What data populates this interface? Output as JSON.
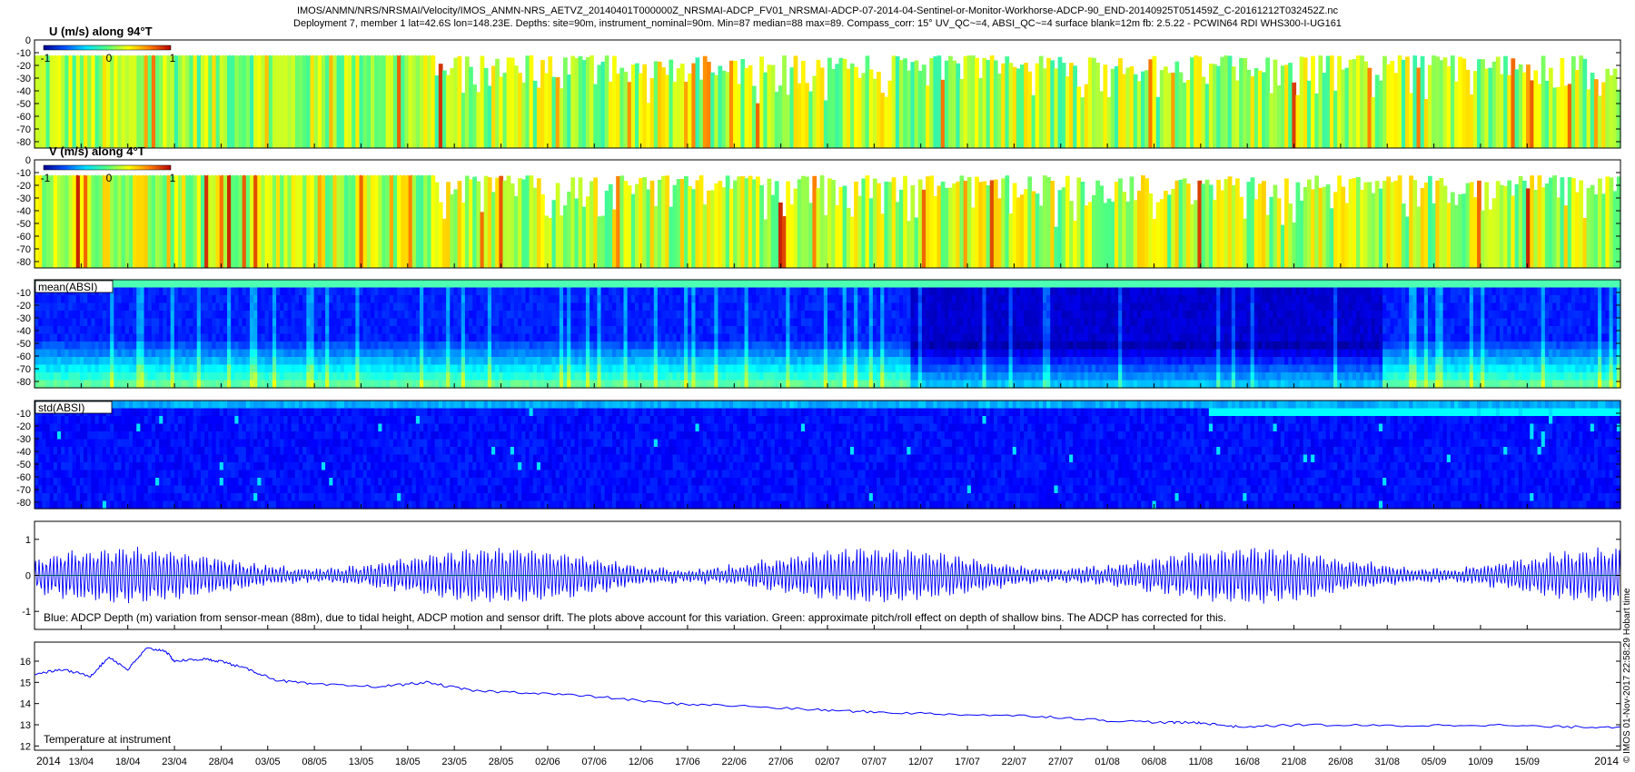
{
  "header": {
    "title_line1": "IMOS/ANMN/NRS/NRSMAI/Velocity/IMOS_ANMN-NRS_AETVZ_20140401T000000Z_NRSMAI-ADCP_FV01_NRSMAI-ADCP-07-2014-04-Sentinel-or-Monitor-Workhorse-ADCP-90_END-20140925T051459Z_C-20161212T032452Z.nc",
    "title_line2": "Deployment 7, member 1 lat=42.6S lon=148.23E. Depths: site=90m, instrument_nominal=90m. Min=87 median=88 max=89. Compass_corr: 15° UV_QC~=4, ABSI_QC~=4 surface blank=12m fb: 2.5.22 - PCWIN64 RDI WHS300-I-UG161"
  },
  "side_note": "© IMOS 01-Nov-2017 22:58:29 Hobart time",
  "colors": {
    "frame": "#000000",
    "line_blue": "#0000ff",
    "line_green": "#00aa00",
    "velocity_colormap": [
      "#00008f",
      "#0050ff",
      "#00dfff",
      "#50ff80",
      "#ffff00",
      "#ff8000",
      "#b40000"
    ],
    "absi_colormap": [
      "#000080",
      "#0000ff",
      "#0080ff",
      "#00ffff",
      "#80ff80",
      "#ffff00"
    ]
  },
  "chart_data": [
    {
      "type": "heatmap",
      "label": "U (m/s) along 94°T",
      "quantity": "u_velocity",
      "ylim": [
        -85,
        0
      ],
      "yticks": [
        "0",
        "-10",
        "-20",
        "-30",
        "-40",
        "-50",
        "-60",
        "-70",
        "-80"
      ],
      "colorbar": {
        "min": -1,
        "max": 1,
        "ticks": [
          "-1",
          "0",
          "1"
        ]
      },
      "blank_depth": -12,
      "typical_range": [
        -0.3,
        0.6
      ]
    },
    {
      "type": "heatmap",
      "label": "V (m/s) along 4°T",
      "quantity": "v_velocity",
      "ylim": [
        -85,
        0
      ],
      "yticks": [
        "0",
        "-10",
        "-20",
        "-30",
        "-40",
        "-50",
        "-60",
        "-70",
        "-80"
      ],
      "colorbar": {
        "min": -1,
        "max": 1,
        "ticks": [
          "-1",
          "0",
          "1"
        ]
      },
      "blank_depth": -12,
      "typical_range": [
        -0.3,
        0.8
      ]
    },
    {
      "type": "heatmap",
      "label": "mean(ABSI)",
      "quantity": "mean_absi",
      "ylim": [
        -85,
        0
      ],
      "yticks": [
        "-10",
        "-20",
        "-30",
        "-40",
        "-50",
        "-60",
        "-70",
        "-80"
      ]
    },
    {
      "type": "heatmap",
      "label": "std(ABSI)",
      "quantity": "std_absi",
      "ylim": [
        -85,
        0
      ],
      "yticks": [
        "-10",
        "-20",
        "-30",
        "-40",
        "-50",
        "-60",
        "-70",
        "-80"
      ]
    },
    {
      "type": "line",
      "label": "Blue: ADCP Depth (m) variation from sensor-mean (88m), due to tidal height, ADCP motion and sensor drift. The plots above account for this variation. Green: approximate pitch/roll effect on depth of shallow bins. The ADCP has corrected for this.",
      "ylim": [
        -1.5,
        1.5
      ],
      "yticks": [
        "1",
        "0",
        "-1"
      ],
      "series": [
        {
          "color": "blue",
          "amplitude_range": [
            0.25,
            0.75
          ],
          "period_days": 0.5
        },
        {
          "color": "green",
          "values_constant": 0
        }
      ]
    },
    {
      "type": "line",
      "label": "Temperature at instrument",
      "ylim": [
        11.8,
        16.9
      ],
      "yticks": [
        "16",
        "15",
        "14",
        "13",
        "12"
      ],
      "x": [
        "2014-04-08",
        "2014-04-11",
        "2014-04-14",
        "2014-04-16",
        "2014-04-18",
        "2014-04-20",
        "2014-04-22",
        "2014-04-23",
        "2014-04-26",
        "2014-04-28",
        "2014-05-01",
        "2014-05-04",
        "2014-05-08",
        "2014-05-15",
        "2014-05-20",
        "2014-05-25",
        "2014-06-01",
        "2014-06-08",
        "2014-06-15",
        "2014-06-22",
        "2014-07-01",
        "2014-07-07",
        "2014-07-15",
        "2014-07-25",
        "2014-08-01",
        "2014-08-08",
        "2014-08-11",
        "2014-08-15",
        "2014-08-22",
        "2014-09-01",
        "2014-09-10",
        "2014-09-18",
        "2014-09-25"
      ],
      "values": [
        15.4,
        15.6,
        15.3,
        16.2,
        15.6,
        16.6,
        16.5,
        16.0,
        16.1,
        16.0,
        15.6,
        15.1,
        14.9,
        14.8,
        15.0,
        14.6,
        14.5,
        14.3,
        14.0,
        13.9,
        13.7,
        13.6,
        13.5,
        13.4,
        13.2,
        13.1,
        13.1,
        12.9,
        13.0,
        12.95,
        13.0,
        12.9,
        12.9
      ]
    }
  ],
  "x_axis": {
    "range": [
      "2014-04-08",
      "2014-09-25"
    ],
    "start_label": "2014",
    "end_label": "2014",
    "ticks": [
      "13/04",
      "18/04",
      "23/04",
      "28/04",
      "03/05",
      "08/05",
      "13/05",
      "18/05",
      "23/05",
      "28/05",
      "02/06",
      "07/06",
      "12/06",
      "17/06",
      "22/06",
      "27/06",
      "02/07",
      "07/07",
      "12/07",
      "17/07",
      "22/07",
      "27/07",
      "01/08",
      "06/08",
      "11/08",
      "16/08",
      "21/08",
      "26/08",
      "31/08",
      "05/09",
      "10/09",
      "15/09"
    ]
  }
}
